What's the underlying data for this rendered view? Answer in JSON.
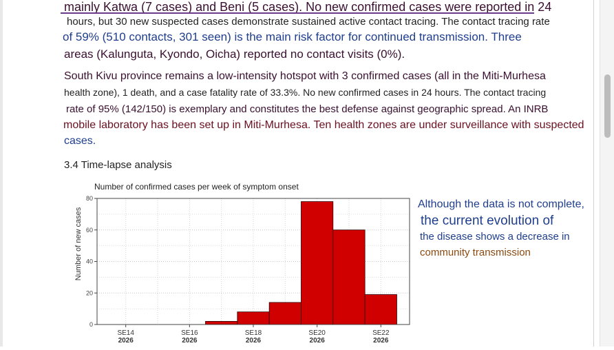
{
  "paragraph1": {
    "line1": "mainly Katwa (7 cases) and Beni (5 cases). No new confirmed cases were reported in 24",
    "line2": "hours, but 30 new suspected cases demonstrate sustained active contact tracing. The contact tracing rate",
    "line3": "of 59% (510 contacts, 301 seen) is the main risk factor for continued transmission. Three",
    "line4": "areas (Kalunguta, Kyondo, Oicha) reported no contact visits (0%)."
  },
  "paragraph2": {
    "line1": "South Kivu province remains a low-intensity hotspot with 3 confirmed cases (all in the Miti-Murhesa",
    "line2": "health zone), 1 death, and a case fatality rate of 33.3%. No new confirmed cases in 24 hours. The contact tracing",
    "line3": "rate of 95% (142/150) is exemplary and constitutes the best defense against geographic spread. An INRB",
    "line4": "mobile laboratory has been set up in Miti-Murhesa. Ten health zones are under surveillance with suspected",
    "line5": "cases."
  },
  "section": {
    "title": "3.4 Time-lapse analysis"
  },
  "chart_data": {
    "type": "bar",
    "title": "Number of confirmed cases per week of symptom onset",
    "ylabel": "Number of new cases",
    "xlabel": "",
    "ylim": [
      0,
      80
    ],
    "yticks": [
      "0",
      "20",
      "40",
      "60",
      "80"
    ],
    "categories": [
      "SE14 2026",
      "SE15 2026",
      "SE16 2026",
      "SE17 2026",
      "SE18 2026",
      "SE19 2026",
      "SE20 2026",
      "SE21 2026",
      "SE22 2026"
    ],
    "tick_labels": [
      {
        "week": "SE14",
        "year": "2026"
      },
      {
        "week": "SE16",
        "year": "2026"
      },
      {
        "week": "SE18",
        "year": "2026"
      },
      {
        "week": "SE20",
        "year": "2026"
      },
      {
        "week": "SE22",
        "year": "2026"
      }
    ],
    "values": [
      0,
      0,
      0,
      2,
      8,
      14,
      78,
      60,
      19
    ],
    "bar_color": "#d10000",
    "grid": true
  },
  "side_note": {
    "line1": "Although the data is not complete,",
    "line2": "the current evolution of",
    "line3": "the disease shows a decrease in",
    "line4": "community transmission"
  },
  "colors": {
    "dark_purple": "#3a1030",
    "navy": "#1f3e8c",
    "dark_red": "#6a1020",
    "brown": "#8a4a10"
  }
}
